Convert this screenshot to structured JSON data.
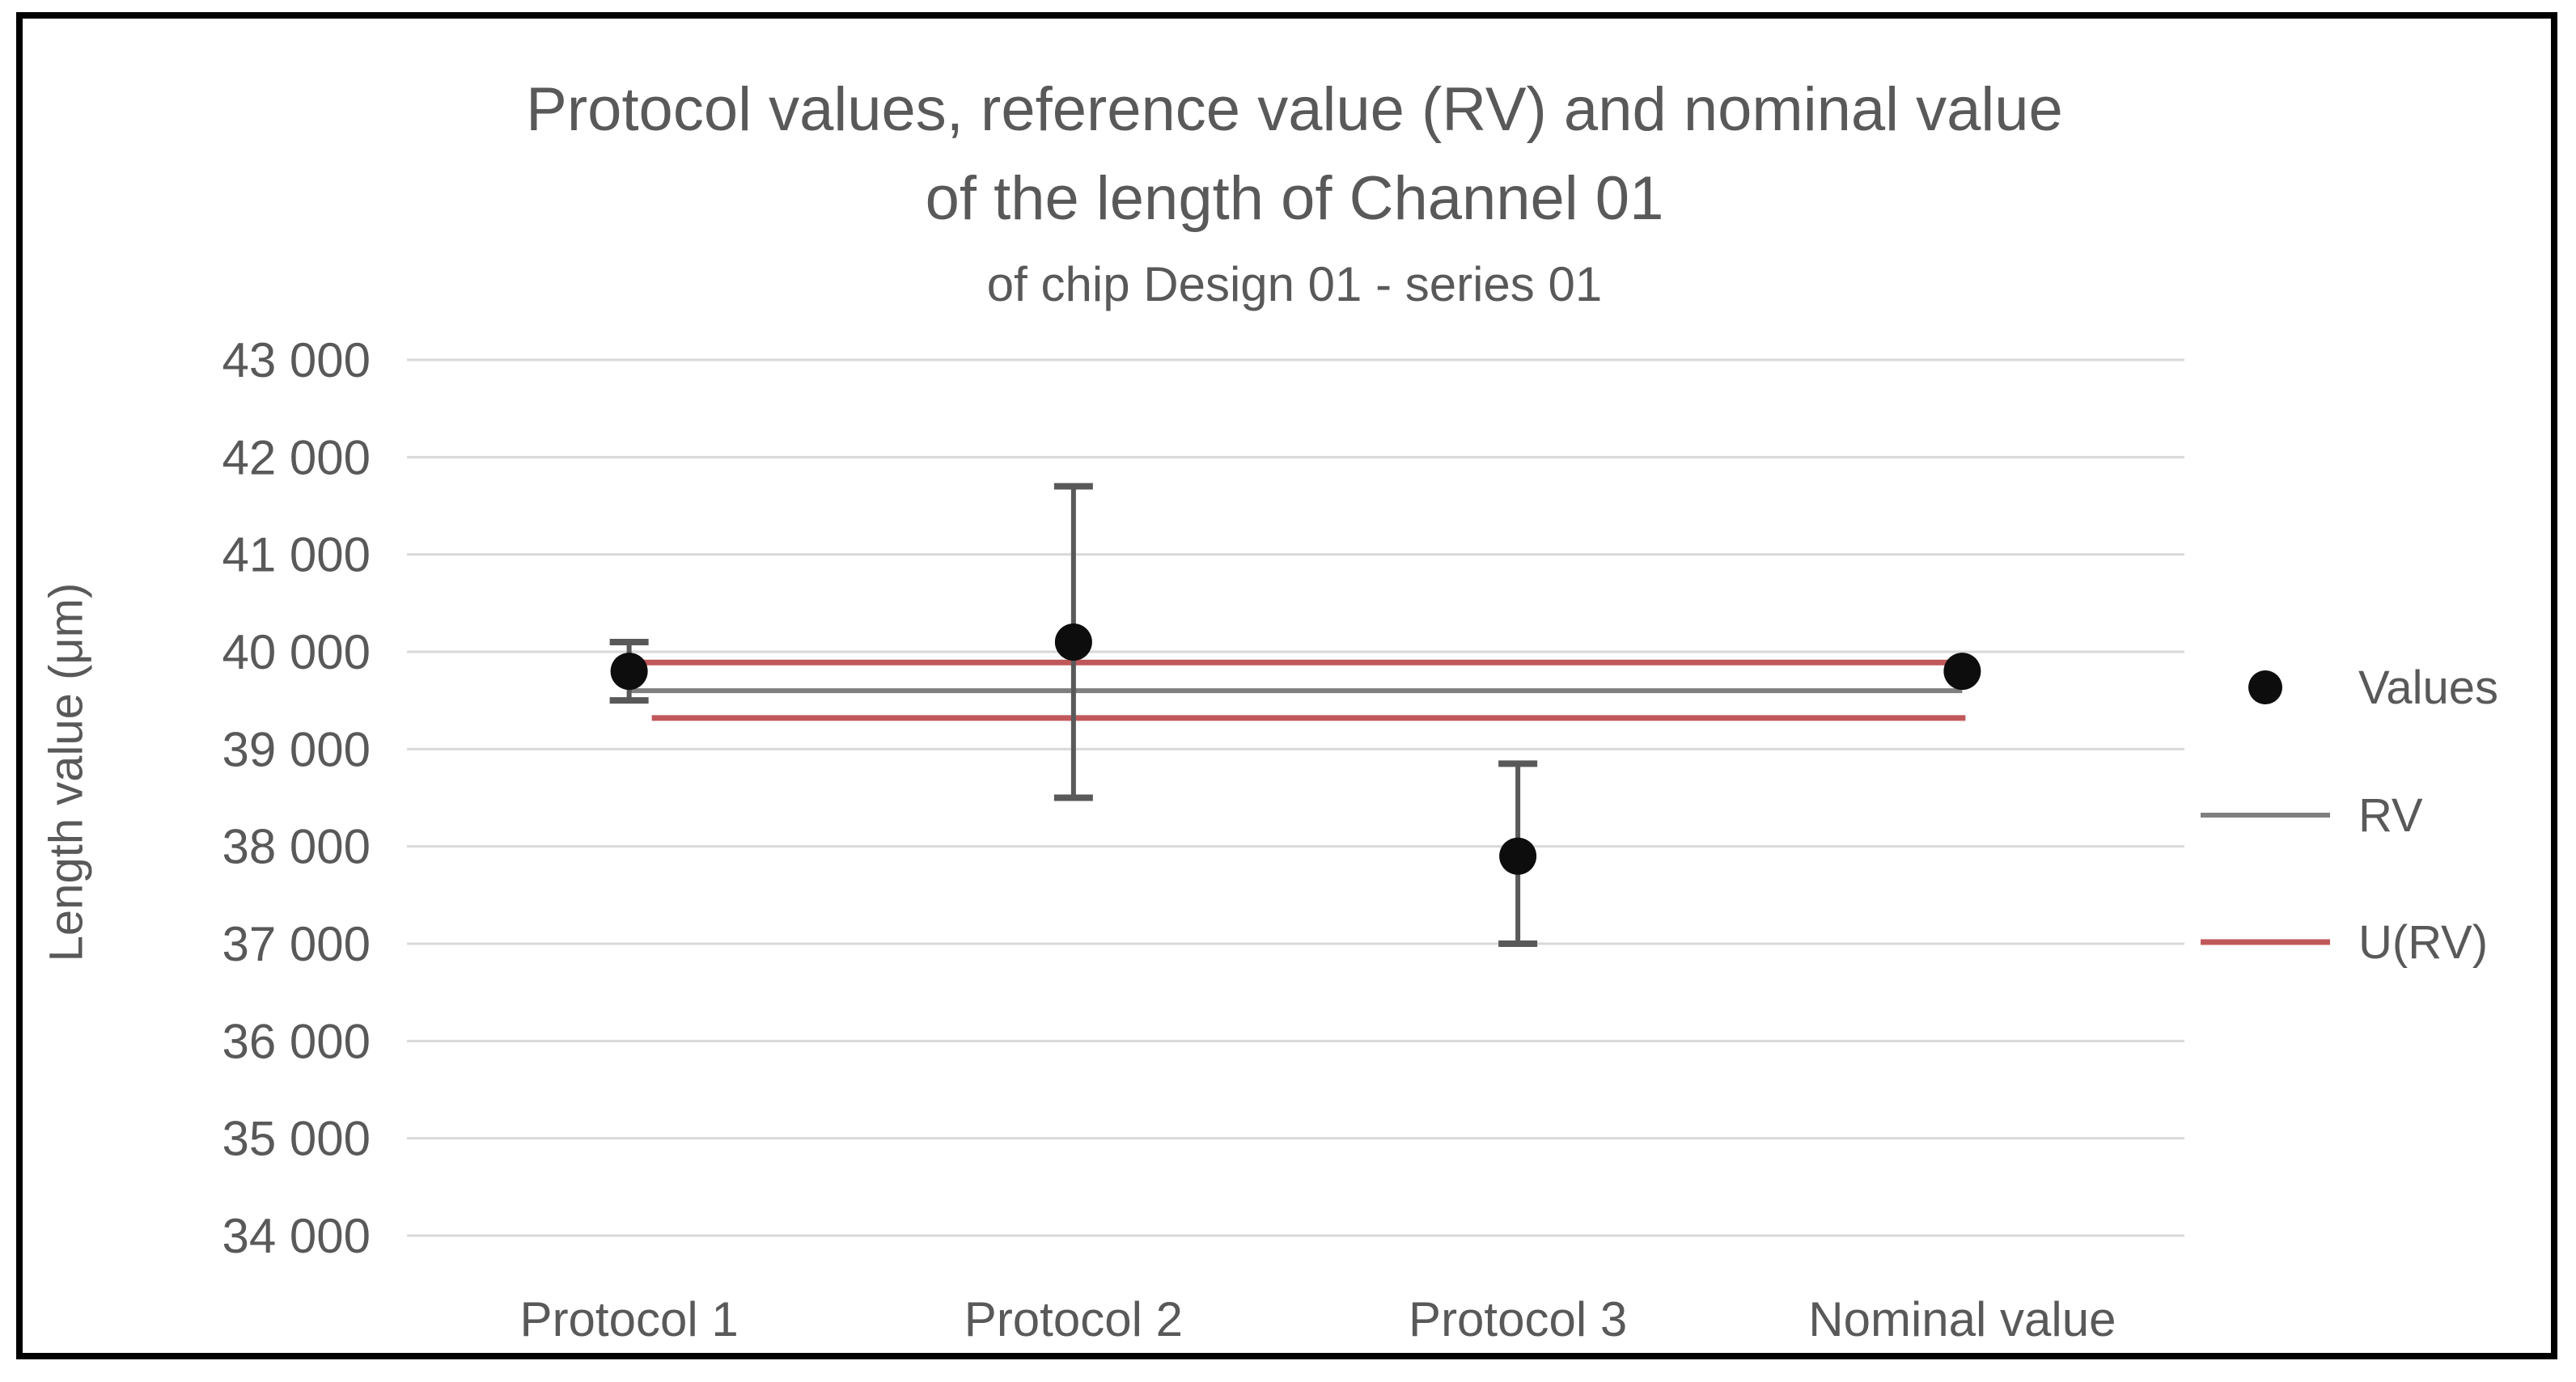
{
  "chart_data": {
    "type": "scatter",
    "title": {
      "line1": "Protocol values, reference value (RV) and nominal value",
      "line2": "of the length of Channel 01",
      "subtitle": "of chip Design 01 - series 01"
    },
    "ylabel": "Length value (μm)",
    "y_axis": {
      "min": 34000,
      "max": 43000,
      "step": 1000,
      "tick_labels_top_down": [
        "43 000",
        "42 000",
        "41 000",
        "40 000",
        "39 000",
        "38 000",
        "37 000",
        "36 000",
        "35 000",
        "34 000"
      ]
    },
    "categories": [
      "Protocol 1",
      "Protocol 2",
      "Protocol 3",
      "Nominal value"
    ],
    "values_series": {
      "name": "Values",
      "points": [
        {
          "category": "Protocol 1",
          "value": 39800,
          "error_high": 40100,
          "error_low": 39500
        },
        {
          "category": "Protocol 2",
          "value": 40100,
          "error_high": 41700,
          "error_low": 38500
        },
        {
          "category": "Protocol 3",
          "value": 37900,
          "error_high": 38850,
          "error_low": 37000
        },
        {
          "category": "Nominal value",
          "value": 39800,
          "error_high": null,
          "error_low": null
        }
      ]
    },
    "rv_line": {
      "name": "RV",
      "value": 39600
    },
    "urv_lines": {
      "name": "U(RV)",
      "upper": 39890,
      "lower": 39320
    },
    "legend": [
      {
        "label": "Values",
        "marker": "black-dot"
      },
      {
        "label": "RV",
        "marker": "gray-line"
      },
      {
        "label": "U(RV)",
        "marker": "red-line"
      }
    ],
    "legend_position": "right",
    "grid": true,
    "colors": {
      "text": "#595959",
      "gridline": "#d9d9d9",
      "values_marker": "#0d0d0d",
      "error_bar": "#595959",
      "rv": "#7f7f7f",
      "urv": "#c0585a",
      "frame": "#000000"
    }
  }
}
